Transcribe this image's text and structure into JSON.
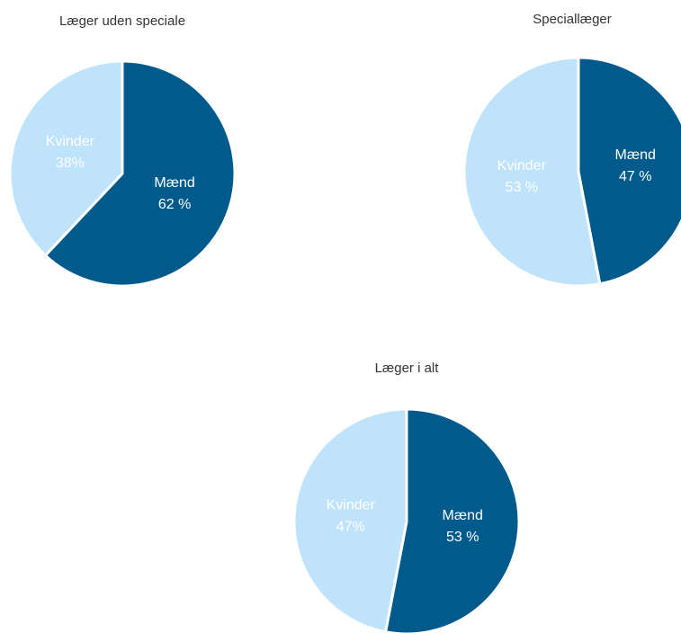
{
  "chart_data": [
    {
      "type": "pie",
      "title": "Læger uden speciale",
      "categories": [
        "Mænd",
        "Kvinder"
      ],
      "values": [
        62,
        38
      ],
      "value_labels": [
        "62 %",
        "38%"
      ],
      "colors": [
        "#005a8c",
        "#bee3fb"
      ]
    },
    {
      "type": "pie",
      "title": "Speciallæger",
      "categories": [
        "Mænd",
        "Kvinder"
      ],
      "values": [
        47,
        53
      ],
      "value_labels": [
        "47 %",
        "53 %"
      ],
      "colors": [
        "#005a8c",
        "#bee3fb"
      ]
    },
    {
      "type": "pie",
      "title": "Læger i alt",
      "categories": [
        "Mænd",
        "Kvinder"
      ],
      "values": [
        53,
        47
      ],
      "value_labels": [
        "53 %",
        "47%"
      ],
      "colors": [
        "#005a8c",
        "#bee3fb"
      ]
    }
  ]
}
